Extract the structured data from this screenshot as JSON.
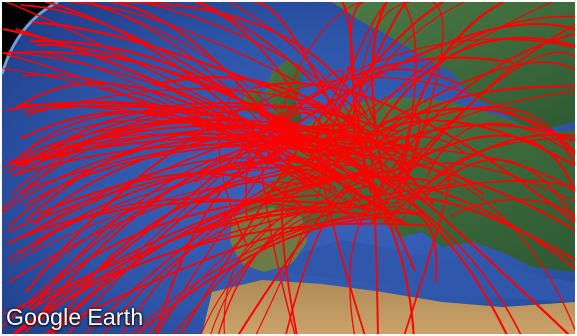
{
  "map": {
    "brand_word1": "Google",
    "brand_word2": "Earth",
    "route_color": "#ff0000",
    "ocean_color": "#2d55a8",
    "land_color": "#3c6b3a",
    "space_color": "#000000"
  }
}
